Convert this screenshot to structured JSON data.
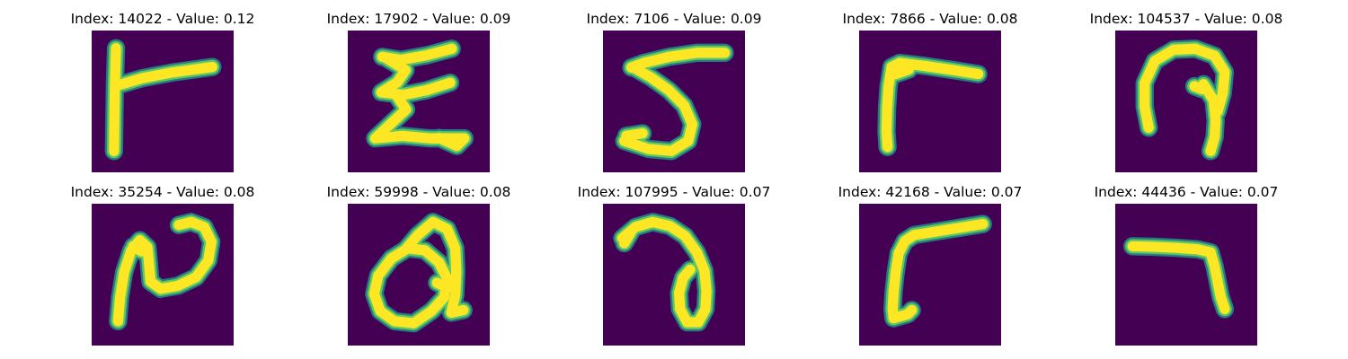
{
  "colors": {
    "background": "#440154",
    "stroke_core": "#fde725",
    "stroke_mid": "#5ec962",
    "stroke_edge": "#21918c"
  },
  "panels": [
    {
      "title": "Index: 14022 - Value: 0.12"
    },
    {
      "title": "Index: 17902 - Value: 0.09"
    },
    {
      "title": "Index: 7106 - Value: 0.09"
    },
    {
      "title": "Index: 7866 - Value: 0.08"
    },
    {
      "title": "Index: 104537 - Value: 0.08"
    },
    {
      "title": "Index: 35254 - Value: 0.08"
    },
    {
      "title": "Index: 59998 - Value: 0.08"
    },
    {
      "title": "Index: 107995 - Value: 0.07"
    },
    {
      "title": "Index: 42168 - Value: 0.07"
    },
    {
      "title": "Index: 44436 - Value: 0.07"
    }
  ]
}
